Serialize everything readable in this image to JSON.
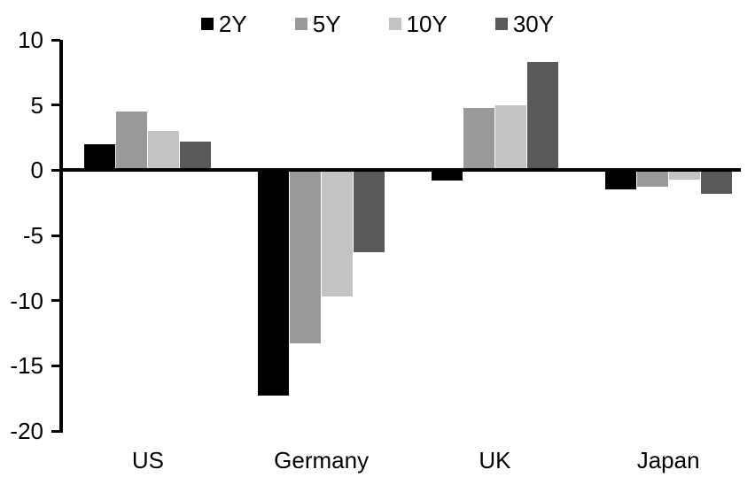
{
  "chart_data": {
    "type": "bar",
    "title": "",
    "xlabel": "",
    "ylabel": "",
    "categories": [
      "US",
      "Germany",
      "UK",
      "Japan"
    ],
    "series": [
      {
        "name": "2Y",
        "color": "#000000",
        "values": [
          2.0,
          -17.3,
          -0.8,
          -1.5
        ]
      },
      {
        "name": "5Y",
        "color": "#999999",
        "values": [
          4.5,
          -13.3,
          4.8,
          -1.3
        ]
      },
      {
        "name": "10Y",
        "color": "#c3c3c3",
        "values": [
          3.0,
          -9.7,
          5.0,
          -0.7
        ]
      },
      {
        "name": "30Y",
        "color": "#595959",
        "values": [
          2.2,
          -6.3,
          8.3,
          -1.8
        ]
      }
    ],
    "ylim": [
      -20,
      10
    ],
    "yticks": [
      10,
      5,
      0,
      -5,
      -10,
      -15,
      -20
    ],
    "grid": false,
    "legend_position": "top-center",
    "background_color": "#ffffff",
    "axis_color": "#000000"
  }
}
